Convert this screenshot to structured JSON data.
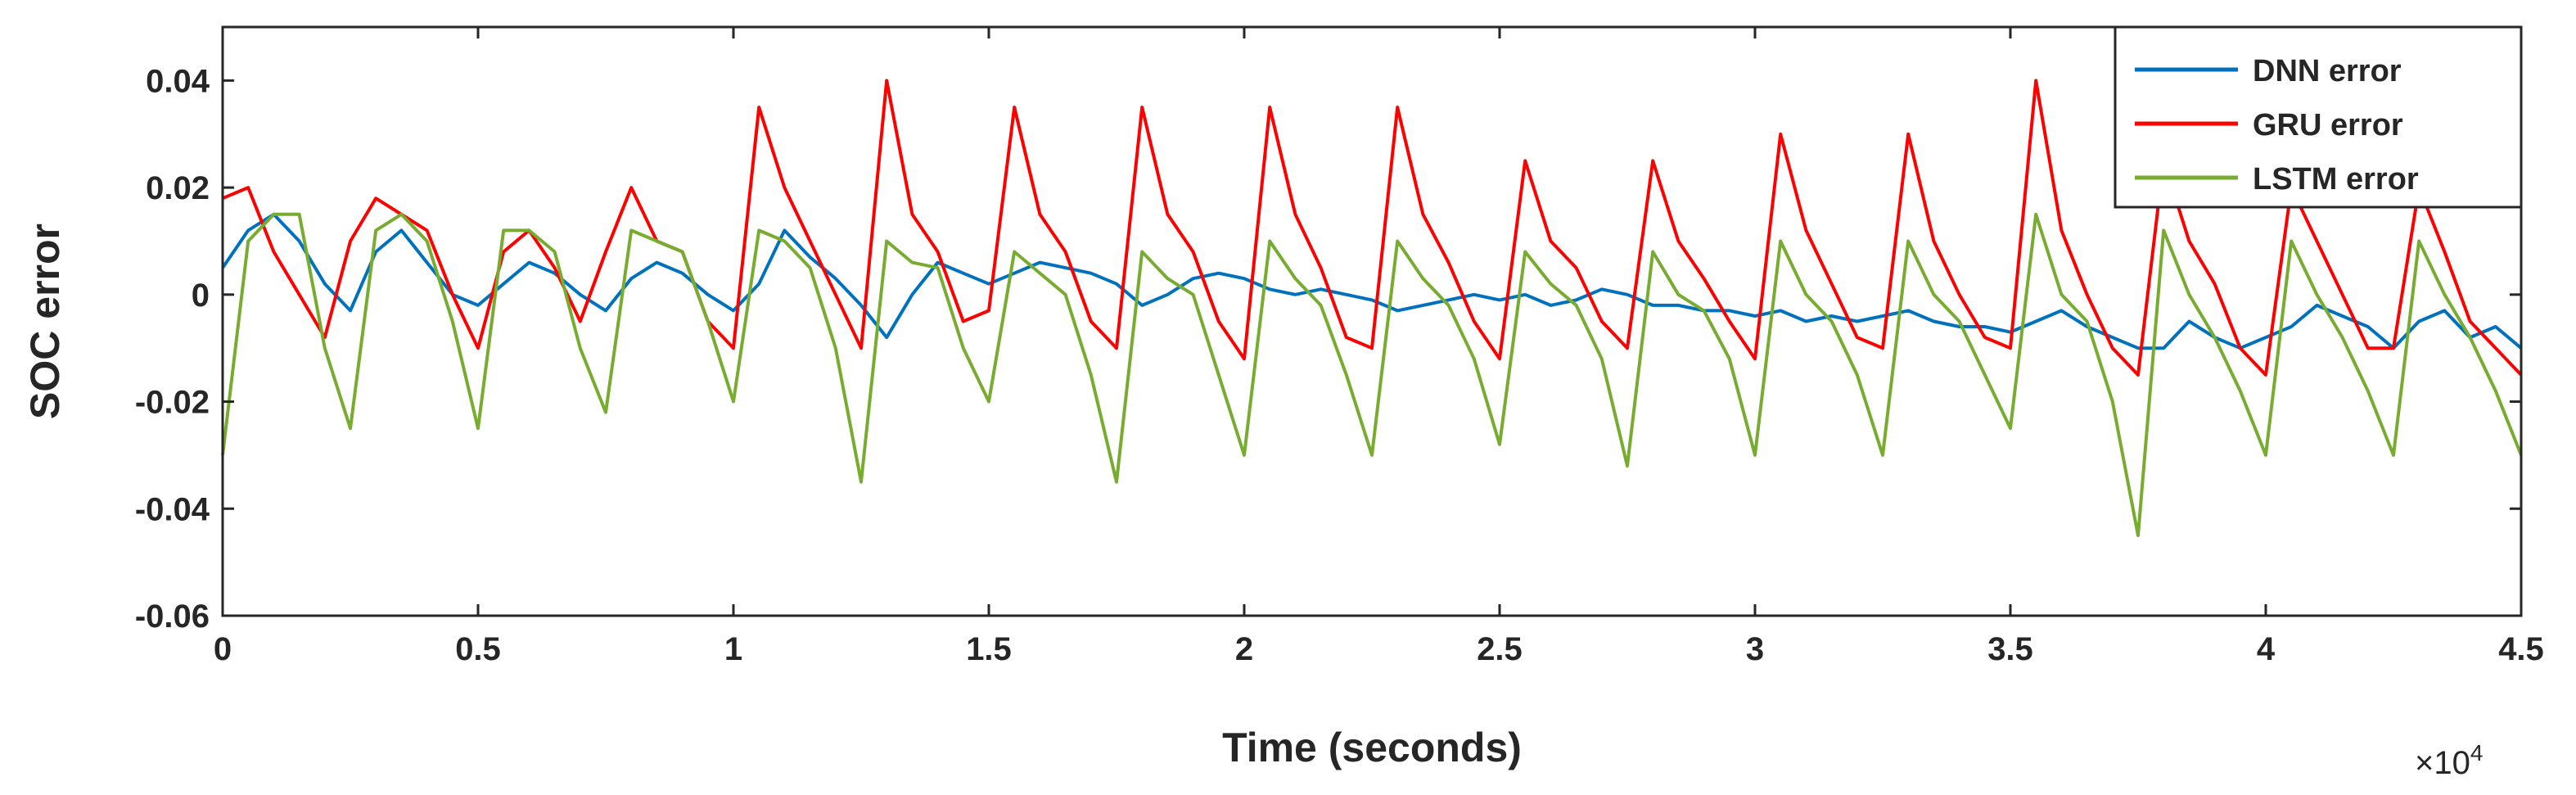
{
  "chart_data": {
    "type": "line",
    "title": "",
    "xlabel": "Time (seconds)",
    "ylabel": "SOC error",
    "x_multiplier_label": "×10",
    "x_multiplier_exponent": "4",
    "xlim": [
      0,
      4.5
    ],
    "ylim": [
      -0.06,
      0.05
    ],
    "x_ticks": [
      0,
      0.5,
      1,
      1.5,
      2,
      2.5,
      3,
      3.5,
      4,
      4.5
    ],
    "x_tick_labels": [
      "0",
      "0.5",
      "1",
      "1.5",
      "2",
      "2.5",
      "3",
      "3.5",
      "4",
      "4.5"
    ],
    "y_ticks": [
      -0.06,
      -0.04,
      -0.02,
      0,
      0.02,
      0.04
    ],
    "y_tick_labels": [
      "-0.06",
      "-0.04",
      "-0.02",
      "0",
      "0.02",
      "0.04"
    ],
    "grid": false,
    "legend_position": "top-right",
    "series": [
      {
        "name": "DNN error",
        "color": "#0072BD",
        "x": [
          0,
          0.05,
          0.1,
          0.15,
          0.2,
          0.25,
          0.3,
          0.35,
          0.4,
          0.45,
          0.5,
          0.55,
          0.6,
          0.65,
          0.7,
          0.75,
          0.8,
          0.85,
          0.9,
          0.95,
          1.0,
          1.05,
          1.1,
          1.15,
          1.2,
          1.25,
          1.3,
          1.35,
          1.4,
          1.45,
          1.5,
          1.55,
          1.6,
          1.65,
          1.7,
          1.75,
          1.8,
          1.85,
          1.9,
          1.95,
          2.0,
          2.05,
          2.1,
          2.15,
          2.2,
          2.25,
          2.3,
          2.35,
          2.4,
          2.45,
          2.5,
          2.55,
          2.6,
          2.65,
          2.7,
          2.75,
          2.8,
          2.85,
          2.9,
          2.95,
          3.0,
          3.05,
          3.1,
          3.15,
          3.2,
          3.25,
          3.3,
          3.35,
          3.4,
          3.45,
          3.5,
          3.55,
          3.6,
          3.65,
          3.7,
          3.75,
          3.8,
          3.85,
          3.9,
          3.95,
          4.0,
          4.05,
          4.1,
          4.15,
          4.2,
          4.25,
          4.3,
          4.35,
          4.4,
          4.45,
          4.5
        ],
        "y": [
          0.005,
          0.012,
          0.015,
          0.01,
          0.002,
          -0.003,
          0.008,
          0.012,
          0.006,
          0.0,
          -0.002,
          0.002,
          0.006,
          0.004,
          0.0,
          -0.003,
          0.003,
          0.006,
          0.004,
          0.0,
          -0.003,
          0.002,
          0.012,
          0.007,
          0.003,
          -0.002,
          -0.008,
          0.0,
          0.006,
          0.004,
          0.002,
          0.004,
          0.006,
          0.005,
          0.004,
          0.002,
          -0.002,
          0.0,
          0.003,
          0.004,
          0.003,
          0.001,
          0.0,
          0.001,
          0.0,
          -0.001,
          -0.003,
          -0.002,
          -0.001,
          0.0,
          -0.001,
          0.0,
          -0.002,
          -0.001,
          0.001,
          0.0,
          -0.002,
          -0.002,
          -0.003,
          -0.003,
          -0.004,
          -0.003,
          -0.005,
          -0.004,
          -0.005,
          -0.004,
          -0.003,
          -0.005,
          -0.006,
          -0.006,
          -0.007,
          -0.005,
          -0.003,
          -0.006,
          -0.008,
          -0.01,
          -0.01,
          -0.005,
          -0.008,
          -0.01,
          -0.008,
          -0.006,
          -0.002,
          -0.004,
          -0.006,
          -0.01,
          -0.005,
          -0.003,
          -0.008,
          -0.006,
          -0.01
        ]
      },
      {
        "name": "GRU error",
        "color": "#FF0000",
        "x": [
          0,
          0.05,
          0.1,
          0.15,
          0.2,
          0.25,
          0.3,
          0.35,
          0.4,
          0.45,
          0.5,
          0.55,
          0.6,
          0.65,
          0.7,
          0.75,
          0.8,
          0.85,
          0.9,
          0.95,
          1.0,
          1.05,
          1.1,
          1.15,
          1.2,
          1.25,
          1.3,
          1.35,
          1.4,
          1.45,
          1.5,
          1.55,
          1.6,
          1.65,
          1.7,
          1.75,
          1.8,
          1.85,
          1.9,
          1.95,
          2.0,
          2.05,
          2.1,
          2.15,
          2.2,
          2.25,
          2.3,
          2.35,
          2.4,
          2.45,
          2.5,
          2.55,
          2.6,
          2.65,
          2.7,
          2.75,
          2.8,
          2.85,
          2.9,
          2.95,
          3.0,
          3.05,
          3.1,
          3.15,
          3.2,
          3.25,
          3.3,
          3.35,
          3.4,
          3.45,
          3.5,
          3.55,
          3.6,
          3.65,
          3.7,
          3.75,
          3.8,
          3.85,
          3.9,
          3.95,
          4.0,
          4.05,
          4.1,
          4.15,
          4.2,
          4.25,
          4.3,
          4.35,
          4.4,
          4.45,
          4.5
        ],
        "y": [
          0.018,
          0.02,
          0.008,
          0.0,
          -0.008,
          0.01,
          0.018,
          0.015,
          0.012,
          0.0,
          -0.01,
          0.008,
          0.012,
          0.005,
          -0.005,
          0.008,
          0.02,
          0.01,
          0.008,
          -0.005,
          -0.01,
          0.035,
          0.02,
          0.01,
          0.0,
          -0.01,
          0.04,
          0.015,
          0.008,
          -0.005,
          -0.003,
          0.035,
          0.015,
          0.008,
          -0.005,
          -0.01,
          0.035,
          0.015,
          0.008,
          -0.005,
          -0.012,
          0.035,
          0.015,
          0.005,
          -0.008,
          -0.01,
          0.035,
          0.015,
          0.006,
          -0.005,
          -0.012,
          0.025,
          0.01,
          0.005,
          -0.005,
          -0.01,
          0.025,
          0.01,
          0.003,
          -0.005,
          -0.012,
          0.03,
          0.012,
          0.002,
          -0.008,
          -0.01,
          0.03,
          0.01,
          0.0,
          -0.008,
          -0.01,
          0.04,
          0.012,
          0.0,
          -0.01,
          -0.015,
          0.025,
          0.01,
          0.002,
          -0.01,
          -0.015,
          0.02,
          0.01,
          0.0,
          -0.01,
          -0.01,
          0.02,
          0.008,
          -0.005,
          -0.01,
          -0.015
        ]
      },
      {
        "name": "LSTM error",
        "color": "#77AC30",
        "x": [
          0,
          0.05,
          0.1,
          0.15,
          0.2,
          0.25,
          0.3,
          0.35,
          0.4,
          0.45,
          0.5,
          0.55,
          0.6,
          0.65,
          0.7,
          0.75,
          0.8,
          0.85,
          0.9,
          0.95,
          1.0,
          1.05,
          1.1,
          1.15,
          1.2,
          1.25,
          1.3,
          1.35,
          1.4,
          1.45,
          1.5,
          1.55,
          1.6,
          1.65,
          1.7,
          1.75,
          1.8,
          1.85,
          1.9,
          1.95,
          2.0,
          2.05,
          2.1,
          2.15,
          2.2,
          2.25,
          2.3,
          2.35,
          2.4,
          2.45,
          2.5,
          2.55,
          2.6,
          2.65,
          2.7,
          2.75,
          2.8,
          2.85,
          2.9,
          2.95,
          3.0,
          3.05,
          3.1,
          3.15,
          3.2,
          3.25,
          3.3,
          3.35,
          3.4,
          3.45,
          3.5,
          3.55,
          3.6,
          3.65,
          3.7,
          3.75,
          3.8,
          3.85,
          3.9,
          3.95,
          4.0,
          4.05,
          4.1,
          4.15,
          4.2,
          4.25,
          4.3,
          4.35,
          4.4,
          4.45,
          4.5
        ],
        "y": [
          -0.03,
          0.01,
          0.015,
          0.015,
          -0.01,
          -0.025,
          0.012,
          0.015,
          0.01,
          -0.005,
          -0.025,
          0.012,
          0.012,
          0.008,
          -0.01,
          -0.022,
          0.012,
          0.01,
          0.008,
          -0.005,
          -0.02,
          0.012,
          0.01,
          0.005,
          -0.01,
          -0.035,
          0.01,
          0.006,
          0.005,
          -0.01,
          -0.02,
          0.008,
          0.004,
          0.0,
          -0.015,
          -0.035,
          0.008,
          0.003,
          0.0,
          -0.015,
          -0.03,
          0.01,
          0.003,
          -0.002,
          -0.015,
          -0.03,
          0.01,
          0.003,
          -0.002,
          -0.012,
          -0.028,
          0.008,
          0.002,
          -0.002,
          -0.012,
          -0.032,
          0.008,
          0.0,
          -0.003,
          -0.012,
          -0.03,
          0.01,
          0.0,
          -0.005,
          -0.015,
          -0.03,
          0.01,
          0.0,
          -0.005,
          -0.015,
          -0.025,
          0.015,
          0.0,
          -0.005,
          -0.02,
          -0.045,
          0.012,
          0.0,
          -0.008,
          -0.018,
          -0.03,
          0.01,
          0.0,
          -0.008,
          -0.018,
          -0.03,
          0.01,
          0.0,
          -0.008,
          -0.018,
          -0.03
        ]
      }
    ]
  }
}
